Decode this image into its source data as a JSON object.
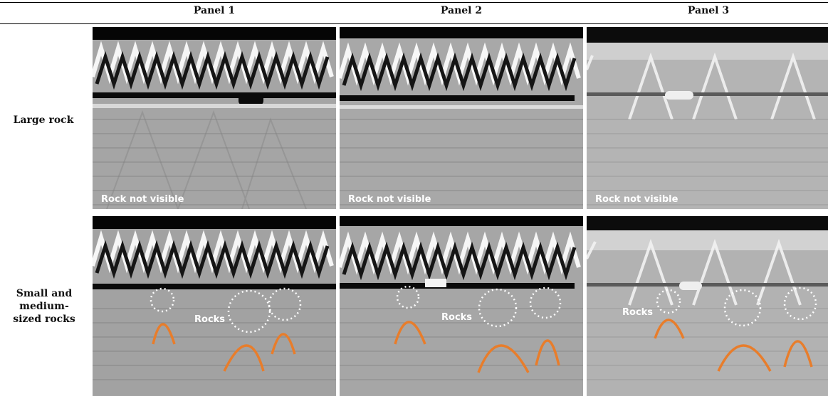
{
  "header": {
    "columns": [
      "Panel 1",
      "Panel 2",
      "Panel 3"
    ]
  },
  "rows": [
    {
      "label": "Large rock",
      "caption": "Rock not visible"
    },
    {
      "label": "Small and medium-sized rocks",
      "annotation": "Rocks"
    }
  ],
  "colors": {
    "hyperbola": "#e87d2b",
    "circle": "#ffffff"
  }
}
